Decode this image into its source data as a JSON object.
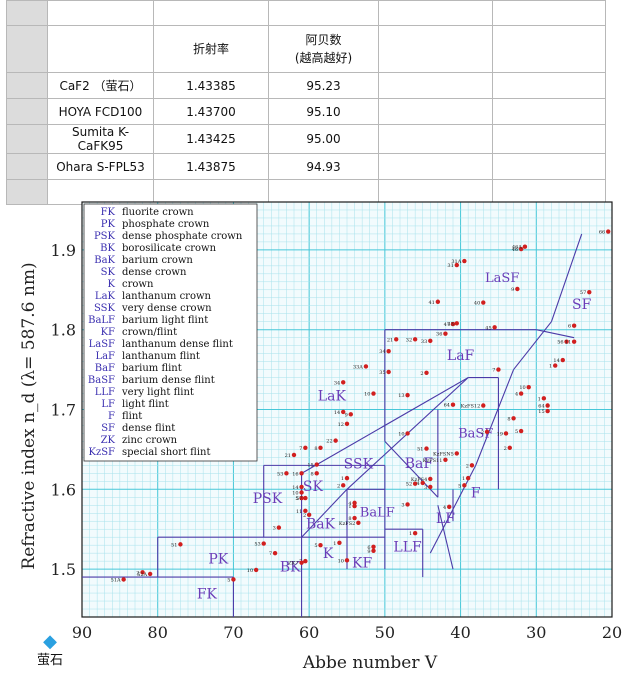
{
  "table": {
    "header": [
      "",
      "折射率",
      "阿贝数\n(越高越好)",
      "",
      ""
    ],
    "rows": [
      [
        "CaF2 （萤石）",
        "1.43385",
        "95.23",
        "",
        ""
      ],
      [
        "HOYA FCD100",
        "1.43700",
        "95.10",
        "",
        ""
      ],
      [
        "Sumita K-CaFK95",
        "1.43425",
        "95.00",
        "",
        ""
      ],
      [
        "Ohara S-FPL53",
        "1.43875",
        "94.93",
        "",
        ""
      ]
    ]
  },
  "chart_data": {
    "type": "scatter",
    "xlabel": "Abbe number V",
    "ylabel": "Refractive index n_d (λ= 587.6 nm)",
    "xlim": [
      90,
      20
    ],
    "ylim": [
      1.44,
      1.96
    ],
    "x_ticks": [
      "90",
      "80",
      "70",
      "60",
      "50",
      "40",
      "30",
      "20"
    ],
    "y_ticks": [
      "1.5",
      "1.6",
      "1.7",
      "1.8",
      "1.9"
    ],
    "grid": true,
    "legend_position": "top-left",
    "legend": [
      {
        "code": "FK",
        "name": "fluorite crown"
      },
      {
        "code": "PK",
        "name": "phosphate crown"
      },
      {
        "code": "PSK",
        "name": "dense phosphate crown"
      },
      {
        "code": "BK",
        "name": "borosilicate crown"
      },
      {
        "code": "BaK",
        "name": "barium crown"
      },
      {
        "code": "SK",
        "name": "dense crown"
      },
      {
        "code": "K",
        "name": "crown"
      },
      {
        "code": "LaK",
        "name": "lanthanum crown"
      },
      {
        "code": "SSK",
        "name": "very dense crown"
      },
      {
        "code": "BaLF",
        "name": "barium light flint"
      },
      {
        "code": "KF",
        "name": "crown/flint"
      },
      {
        "code": "LaSF",
        "name": "lanthanum dense flint"
      },
      {
        "code": "LaF",
        "name": "lanthanum flint"
      },
      {
        "code": "BaF",
        "name": "barium flint"
      },
      {
        "code": "BaSF",
        "name": "barium dense flint"
      },
      {
        "code": "LLF",
        "name": "very light flint"
      },
      {
        "code": "LF",
        "name": "light flint"
      },
      {
        "code": "F",
        "name": "flint"
      },
      {
        "code": "SF",
        "name": "dense flint"
      },
      {
        "code": "ZK",
        "name": "zinc crown"
      },
      {
        "code": "KzSF",
        "name": "special short flint"
      }
    ],
    "regions": [
      {
        "label": "LaSF",
        "x": 34.5,
        "y": 1.86
      },
      {
        "label": "SF",
        "x": 24,
        "y": 1.826
      },
      {
        "label": "LaF",
        "x": 40,
        "y": 1.762
      },
      {
        "label": "LaK",
        "x": 57,
        "y": 1.711
      },
      {
        "label": "BaSF",
        "x": 38,
        "y": 1.665
      },
      {
        "label": "SSK",
        "x": 53.5,
        "y": 1.626
      },
      {
        "label": "BaF",
        "x": 45.5,
        "y": 1.627
      },
      {
        "label": "SK",
        "x": 59.5,
        "y": 1.598
      },
      {
        "label": "PSK",
        "x": 65.5,
        "y": 1.583
      },
      {
        "label": "BaLF",
        "x": 51,
        "y": 1.566
      },
      {
        "label": "F",
        "x": 38,
        "y": 1.59
      },
      {
        "label": "BaK",
        "x": 58.5,
        "y": 1.551
      },
      {
        "label": "LF",
        "x": 42,
        "y": 1.558
      },
      {
        "label": "LLF",
        "x": 47,
        "y": 1.522
      },
      {
        "label": "PK",
        "x": 72,
        "y": 1.507
      },
      {
        "label": "K",
        "x": 57.5,
        "y": 1.514
      },
      {
        "label": "KF",
        "x": 53,
        "y": 1.502
      },
      {
        "label": "BK",
        "x": 62.5,
        "y": 1.497
      },
      {
        "label": "FK",
        "x": 73.5,
        "y": 1.463
      }
    ],
    "points": [
      {
        "label": "66",
        "x": 20.5,
        "y": 1.923
      },
      {
        "label": "46",
        "x": 32,
        "y": 1.901
      },
      {
        "label": "46A",
        "x": 31.5,
        "y": 1.904
      },
      {
        "label": "31A",
        "x": 39.5,
        "y": 1.886
      },
      {
        "label": "31",
        "x": 40.5,
        "y": 1.881
      },
      {
        "label": "9",
        "x": 32.5,
        "y": 1.851
      },
      {
        "label": "57",
        "x": 23,
        "y": 1.847
      },
      {
        "label": "41",
        "x": 43,
        "y": 1.835
      },
      {
        "label": "40",
        "x": 37,
        "y": 1.834
      },
      {
        "label": "47",
        "x": 41,
        "y": 1.807
      },
      {
        "label": "43",
        "x": 40.5,
        "y": 1.808
      },
      {
        "label": "45",
        "x": 35.5,
        "y": 1.803
      },
      {
        "label": "6",
        "x": 25,
        "y": 1.805
      },
      {
        "label": "21",
        "x": 48.5,
        "y": 1.788
      },
      {
        "label": "32",
        "x": 46,
        "y": 1.788
      },
      {
        "label": "33",
        "x": 44,
        "y": 1.786
      },
      {
        "label": "36",
        "x": 42,
        "y": 1.795
      },
      {
        "label": "56",
        "x": 26,
        "y": 1.785
      },
      {
        "label": "11",
        "x": 25,
        "y": 1.785
      },
      {
        "label": "34",
        "x": 49.5,
        "y": 1.773
      },
      {
        "label": "14",
        "x": 26.5,
        "y": 1.762
      },
      {
        "label": "33A",
        "x": 52.5,
        "y": 1.754
      },
      {
        "label": "7",
        "x": 35,
        "y": 1.75
      },
      {
        "label": "35",
        "x": 49.5,
        "y": 1.747
      },
      {
        "label": "2",
        "x": 44.5,
        "y": 1.746
      },
      {
        "label": "1",
        "x": 27.5,
        "y": 1.755
      },
      {
        "label": "10",
        "x": 31,
        "y": 1.728
      },
      {
        "label": "34",
        "x": 55.5,
        "y": 1.734
      },
      {
        "label": "10",
        "x": 51.5,
        "y": 1.72
      },
      {
        "label": "13",
        "x": 47,
        "y": 1.718
      },
      {
        "label": "4",
        "x": 32,
        "y": 1.72
      },
      {
        "label": "1",
        "x": 29,
        "y": 1.714
      },
      {
        "label": "64",
        "x": 41,
        "y": 1.706
      },
      {
        "label": "KzFS12",
        "x": 37,
        "y": 1.705
      },
      {
        "label": "64",
        "x": 28.5,
        "y": 1.705
      },
      {
        "label": "15",
        "x": 28.5,
        "y": 1.698
      },
      {
        "label": "14",
        "x": 55.5,
        "y": 1.697
      },
      {
        "label": "9",
        "x": 54.5,
        "y": 1.694
      },
      {
        "label": "8",
        "x": 33,
        "y": 1.689
      },
      {
        "label": "12",
        "x": 55,
        "y": 1.682
      },
      {
        "label": "5",
        "x": 32,
        "y": 1.673
      },
      {
        "label": "2",
        "x": 36.5,
        "y": 1.672
      },
      {
        "label": "10",
        "x": 47,
        "y": 1.67
      },
      {
        "label": "19",
        "x": 34,
        "y": 1.67
      },
      {
        "label": "22",
        "x": 56.5,
        "y": 1.661
      },
      {
        "label": "7",
        "x": 60.5,
        "y": 1.652
      },
      {
        "label": "8",
        "x": 58.5,
        "y": 1.652
      },
      {
        "label": "2",
        "x": 33.5,
        "y": 1.652
      },
      {
        "label": "21",
        "x": 62,
        "y": 1.643
      },
      {
        "label": "51",
        "x": 44.5,
        "y": 1.651
      },
      {
        "label": "KzFSN5",
        "x": 40.5,
        "y": 1.645
      },
      {
        "label": "KzFS11",
        "x": 42,
        "y": 1.637
      },
      {
        "label": "2",
        "x": 38.5,
        "y": 1.63
      },
      {
        "label": "15",
        "x": 59,
        "y": 1.631
      },
      {
        "label": "53",
        "x": 63,
        "y": 1.62
      },
      {
        "label": "16",
        "x": 61,
        "y": 1.62
      },
      {
        "label": "8",
        "x": 59,
        "y": 1.62
      },
      {
        "label": "KzFS4",
        "x": 44,
        "y": 1.613
      },
      {
        "label": "1",
        "x": 39,
        "y": 1.614
      },
      {
        "label": "1",
        "x": 55,
        "y": 1.614
      },
      {
        "label": "2",
        "x": 55.5,
        "y": 1.605
      },
      {
        "label": "14",
        "x": 61,
        "y": 1.603
      },
      {
        "label": "52",
        "x": 46,
        "y": 1.607
      },
      {
        "label": "4",
        "x": 45,
        "y": 1.608
      },
      {
        "label": "3",
        "x": 44,
        "y": 1.603
      },
      {
        "label": "5",
        "x": 39.5,
        "y": 1.605
      },
      {
        "label": "10",
        "x": 61,
        "y": 1.596
      },
      {
        "label": "5",
        "x": 61,
        "y": 1.589
      },
      {
        "label": "57",
        "x": 60.5,
        "y": 1.589
      },
      {
        "label": "4",
        "x": 54,
        "y": 1.583
      },
      {
        "label": "1",
        "x": 54,
        "y": 1.579
      },
      {
        "label": "3",
        "x": 47,
        "y": 1.581
      },
      {
        "label": "11",
        "x": 60.5,
        "y": 1.573
      },
      {
        "label": "2",
        "x": 60,
        "y": 1.568
      },
      {
        "label": "KzFS2",
        "x": 53.5,
        "y": 1.558
      },
      {
        "label": "8",
        "x": 54,
        "y": 1.564
      },
      {
        "label": "3",
        "x": 64,
        "y": 1.552
      },
      {
        "label": "4",
        "x": 41.5,
        "y": 1.578
      },
      {
        "label": "1",
        "x": 46,
        "y": 1.545
      },
      {
        "label": "51",
        "x": 77,
        "y": 1.531
      },
      {
        "label": "53",
        "x": 66,
        "y": 1.532
      },
      {
        "label": "5",
        "x": 58.5,
        "y": 1.53
      },
      {
        "label": "1",
        "x": 56,
        "y": 1.533
      },
      {
        "label": "6",
        "x": 51.5,
        "y": 1.528
      },
      {
        "label": "9",
        "x": 51.5,
        "y": 1.523
      },
      {
        "label": "7",
        "x": 64.5,
        "y": 1.52
      },
      {
        "label": "7",
        "x": 60.5,
        "y": 1.51
      },
      {
        "label": "ZK7",
        "x": 61,
        "y": 1.508
      },
      {
        "label": "10",
        "x": 55,
        "y": 1.511
      },
      {
        "label": "10",
        "x": 67,
        "y": 1.499
      },
      {
        "label": "2",
        "x": 82,
        "y": 1.496
      },
      {
        "label": "52A",
        "x": 81,
        "y": 1.494
      },
      {
        "label": "51A",
        "x": 84.5,
        "y": 1.487
      },
      {
        "label": "5",
        "x": 70,
        "y": 1.487
      }
    ]
  },
  "marker": {
    "symbol": "◆",
    "label": "萤石"
  }
}
